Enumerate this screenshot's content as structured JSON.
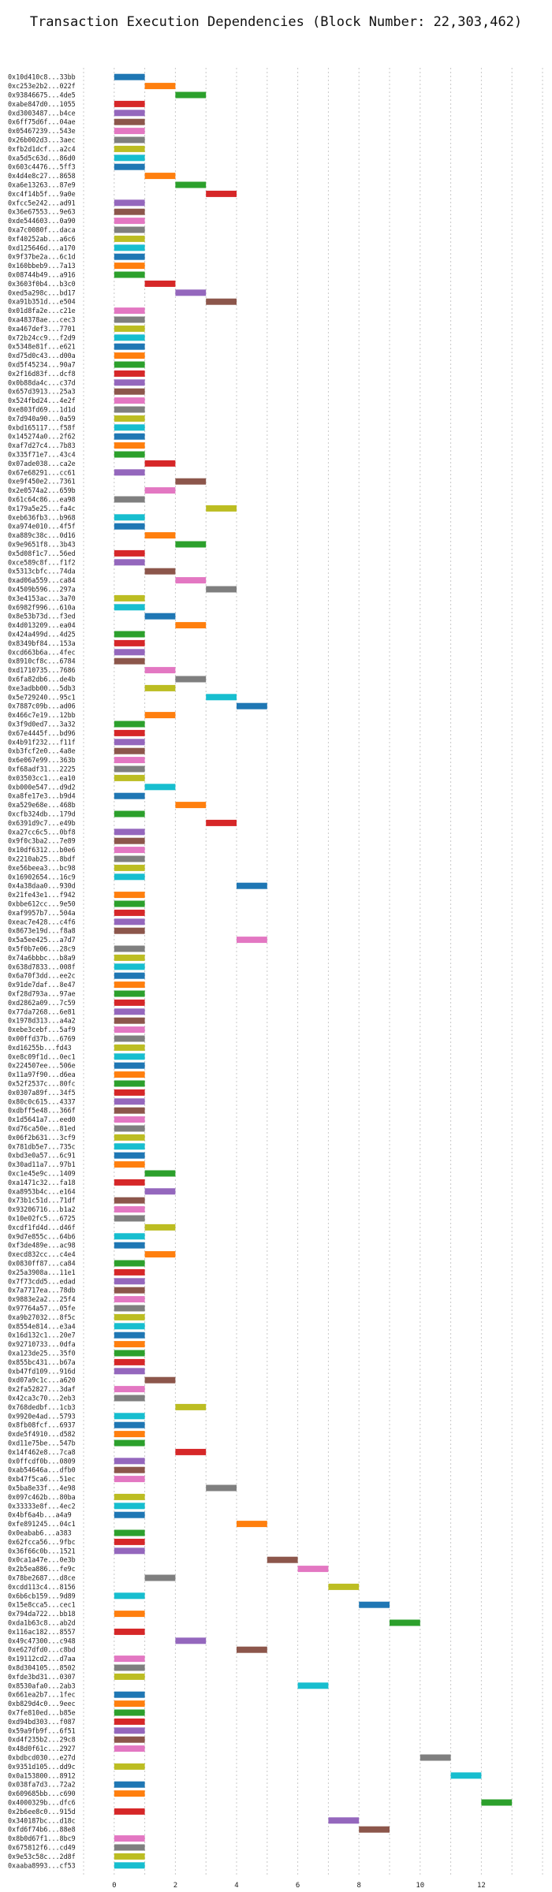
{
  "chart_data": {
    "type": "gantt",
    "title": "Transaction Execution Dependencies (Block Number: 22,303,462)",
    "xlim": [
      -1,
      14
    ],
    "x_ticks": [
      0,
      2,
      4,
      6,
      8,
      10,
      12
    ],
    "grid": true,
    "colors": [
      "#1f77b4",
      "#ff7f0e",
      "#2ca02c",
      "#d62728",
      "#9467bd",
      "#8c564b",
      "#e377c2",
      "#7f7f7f",
      "#bcbd22",
      "#17becf"
    ],
    "tasks": [
      {
        "label": "0x10d410c8...33bb",
        "start": 0,
        "duration": 1
      },
      {
        "label": "0xc253e2b2...022f",
        "start": 1,
        "duration": 1
      },
      {
        "label": "0x93846675...4de5",
        "start": 2,
        "duration": 1
      },
      {
        "label": "0xabe847d0...1055",
        "start": 0,
        "duration": 1
      },
      {
        "label": "0xd3003487...b4ce",
        "start": 0,
        "duration": 1
      },
      {
        "label": "0x6ff75d6f...04ae",
        "start": 0,
        "duration": 1
      },
      {
        "label": "0x05467239...543e",
        "start": 0,
        "duration": 1
      },
      {
        "label": "0x26b002d3...3aec",
        "start": 0,
        "duration": 1
      },
      {
        "label": "0xfb2d1dcf...a2c4",
        "start": 0,
        "duration": 1
      },
      {
        "label": "0xa5d5c63d...86d0",
        "start": 0,
        "duration": 1
      },
      {
        "label": "0x603c4476...5ff3",
        "start": 0,
        "duration": 1
      },
      {
        "label": "0x4d4e8c27...8658",
        "start": 1,
        "duration": 1
      },
      {
        "label": "0xa6e13263...87e9",
        "start": 2,
        "duration": 1
      },
      {
        "label": "0xc4f14b5f...9a0e",
        "start": 3,
        "duration": 1
      },
      {
        "label": "0xfcc5e242...ad91",
        "start": 0,
        "duration": 1
      },
      {
        "label": "0x36e67553...9e63",
        "start": 0,
        "duration": 1
      },
      {
        "label": "0xde544603...0a90",
        "start": 0,
        "duration": 1
      },
      {
        "label": "0xa7c0080f...daca",
        "start": 0,
        "duration": 1
      },
      {
        "label": "0xf40252ab...a6c6",
        "start": 0,
        "duration": 1
      },
      {
        "label": "0xd125646d...a170",
        "start": 0,
        "duration": 1
      },
      {
        "label": "0x9f37be2a...6c1d",
        "start": 0,
        "duration": 1
      },
      {
        "label": "0x160bbeb9...7a13",
        "start": 0,
        "duration": 1
      },
      {
        "label": "0x08744b49...a916",
        "start": 0,
        "duration": 1
      },
      {
        "label": "0x3603f0b4...b3c0",
        "start": 1,
        "duration": 1
      },
      {
        "label": "0xed5a298c...bd17",
        "start": 2,
        "duration": 1
      },
      {
        "label": "0xa91b351d...e504",
        "start": 3,
        "duration": 1
      },
      {
        "label": "0x01d8fa2e...c21e",
        "start": 0,
        "duration": 1
      },
      {
        "label": "0xa48378ae...cec3",
        "start": 0,
        "duration": 1
      },
      {
        "label": "0xa467def3...7701",
        "start": 0,
        "duration": 1
      },
      {
        "label": "0x72b24cc9...f2d9",
        "start": 0,
        "duration": 1
      },
      {
        "label": "0x5348e81f...e621",
        "start": 0,
        "duration": 1
      },
      {
        "label": "0xd75d0c43...d00a",
        "start": 0,
        "duration": 1
      },
      {
        "label": "0xd5f45234...90a7",
        "start": 0,
        "duration": 1
      },
      {
        "label": "0x2f16d83f...dcf8",
        "start": 0,
        "duration": 1
      },
      {
        "label": "0x0b88da4c...c37d",
        "start": 0,
        "duration": 1
      },
      {
        "label": "0x657d3913...25a3",
        "start": 0,
        "duration": 1
      },
      {
        "label": "0x524fbd24...4e2f",
        "start": 0,
        "duration": 1
      },
      {
        "label": "0xe803fd69...1d1d",
        "start": 0,
        "duration": 1
      },
      {
        "label": "0x7d940a90...0a59",
        "start": 0,
        "duration": 1
      },
      {
        "label": "0xbd165117...f58f",
        "start": 0,
        "duration": 1
      },
      {
        "label": "0x145274a0...2f62",
        "start": 0,
        "duration": 1
      },
      {
        "label": "0xaf7d27c4...7b83",
        "start": 0,
        "duration": 1
      },
      {
        "label": "0x335f71e7...43c4",
        "start": 0,
        "duration": 1
      },
      {
        "label": "0x07ade038...ca2e",
        "start": 1,
        "duration": 1
      },
      {
        "label": "0x67e68291...cc61",
        "start": 0,
        "duration": 1
      },
      {
        "label": "0xe9f450e2...7361",
        "start": 2,
        "duration": 1
      },
      {
        "label": "0x2e0574a2...659b",
        "start": 1,
        "duration": 1
      },
      {
        "label": "0x61c64c86...ea98",
        "start": 0,
        "duration": 1
      },
      {
        "label": "0x179a5e25...fa4c",
        "start": 3,
        "duration": 1
      },
      {
        "label": "0xeb636fb3...b968",
        "start": 0,
        "duration": 1
      },
      {
        "label": "0xa974e010...4f5f",
        "start": 0,
        "duration": 1
      },
      {
        "label": "0xa889c38c...0d16",
        "start": 1,
        "duration": 1
      },
      {
        "label": "0x9e9651f8...3b43",
        "start": 2,
        "duration": 1
      },
      {
        "label": "0x5d08f1c7...56ed",
        "start": 0,
        "duration": 1
      },
      {
        "label": "0xce589c8f...f1f2",
        "start": 0,
        "duration": 1
      },
      {
        "label": "0x5313cbfc...74da",
        "start": 1,
        "duration": 1
      },
      {
        "label": "0xad06a559...ca84",
        "start": 2,
        "duration": 1
      },
      {
        "label": "0x4509b596...297a",
        "start": 3,
        "duration": 1
      },
      {
        "label": "0x3e4153ac...3a70",
        "start": 0,
        "duration": 1
      },
      {
        "label": "0x6982f996...610a",
        "start": 0,
        "duration": 1
      },
      {
        "label": "0x8e53b73d...f3ed",
        "start": 1,
        "duration": 1
      },
      {
        "label": "0x4d013209...ea04",
        "start": 2,
        "duration": 1
      },
      {
        "label": "0x424a499d...4d25",
        "start": 0,
        "duration": 1
      },
      {
        "label": "0x8349bf84...153a",
        "start": 0,
        "duration": 1
      },
      {
        "label": "0xcd663b6a...4fec",
        "start": 0,
        "duration": 1
      },
      {
        "label": "0x8910cf8c...6784",
        "start": 0,
        "duration": 1
      },
      {
        "label": "0xd1710735...7686",
        "start": 1,
        "duration": 1
      },
      {
        "label": "0x6fa82db6...de4b",
        "start": 2,
        "duration": 1
      },
      {
        "label": "0xe3adbb00...5db3",
        "start": 1,
        "duration": 1
      },
      {
        "label": "0x5e729240...95c1",
        "start": 3,
        "duration": 1
      },
      {
        "label": "0x7887c09b...ad06",
        "start": 4,
        "duration": 1
      },
      {
        "label": "0x466c7e19...12bb",
        "start": 1,
        "duration": 1
      },
      {
        "label": "0x3f9d0ed7...3a32",
        "start": 0,
        "duration": 1
      },
      {
        "label": "0x67e4445f...bd96",
        "start": 0,
        "duration": 1
      },
      {
        "label": "0x4b91f232...f11f",
        "start": 0,
        "duration": 1
      },
      {
        "label": "0xb3fcf2e0...4a8e",
        "start": 0,
        "duration": 1
      },
      {
        "label": "0x6e067e99...363b",
        "start": 0,
        "duration": 1
      },
      {
        "label": "0xf68adf31...2225",
        "start": 0,
        "duration": 1
      },
      {
        "label": "0x03503cc1...ea10",
        "start": 0,
        "duration": 1
      },
      {
        "label": "0xb000e547...d9d2",
        "start": 1,
        "duration": 1
      },
      {
        "label": "0xa8fe17e3...b9d4",
        "start": 0,
        "duration": 1
      },
      {
        "label": "0xa529e68e...468b",
        "start": 2,
        "duration": 1
      },
      {
        "label": "0xcfb324db...179d",
        "start": 0,
        "duration": 1
      },
      {
        "label": "0x6391d9c7...e49b",
        "start": 3,
        "duration": 1
      },
      {
        "label": "0xa27cc6c5...0bf8",
        "start": 0,
        "duration": 1
      },
      {
        "label": "0x9f0c3ba2...7e89",
        "start": 0,
        "duration": 1
      },
      {
        "label": "0x10df6312...b0e6",
        "start": 0,
        "duration": 1
      },
      {
        "label": "0x2210ab25...8bdf",
        "start": 0,
        "duration": 1
      },
      {
        "label": "0xe56beea3...bc98",
        "start": 0,
        "duration": 1
      },
      {
        "label": "0x16902654...16c9",
        "start": 0,
        "duration": 1
      },
      {
        "label": "0x4a38daa0...930d",
        "start": 4,
        "duration": 1
      },
      {
        "label": "0x21fe43e1...f942",
        "start": 0,
        "duration": 1
      },
      {
        "label": "0xbbe612cc...9e50",
        "start": 0,
        "duration": 1
      },
      {
        "label": "0xaf9957b7...504a",
        "start": 0,
        "duration": 1
      },
      {
        "label": "0xeac7e428...c4f6",
        "start": 0,
        "duration": 1
      },
      {
        "label": "0x8673e19d...f8a8",
        "start": 0,
        "duration": 1
      },
      {
        "label": "0x5a5ee425...a7d7",
        "start": 4,
        "duration": 1
      },
      {
        "label": "0x5f0b7e06...28c9",
        "start": 0,
        "duration": 1
      },
      {
        "label": "0x74a6bbbc...b8a9",
        "start": 0,
        "duration": 1
      },
      {
        "label": "0x638d7833...008f",
        "start": 0,
        "duration": 1
      },
      {
        "label": "0x6a70f3dd...ee2c",
        "start": 0,
        "duration": 1
      },
      {
        "label": "0x91de7daf...8e47",
        "start": 0,
        "duration": 1
      },
      {
        "label": "0xf28d793a...97ae",
        "start": 0,
        "duration": 1
      },
      {
        "label": "0xd2862a09...7c59",
        "start": 0,
        "duration": 1
      },
      {
        "label": "0x77da7268...6e81",
        "start": 0,
        "duration": 1
      },
      {
        "label": "0x1978d313...a4a2",
        "start": 0,
        "duration": 1
      },
      {
        "label": "0xebe3cebf...5af9",
        "start": 0,
        "duration": 1
      },
      {
        "label": "0x00ffd37b...6769",
        "start": 0,
        "duration": 1
      },
      {
        "label": "0xd16255b...fd43",
        "start": 0,
        "duration": 1
      },
      {
        "label": "0xe8c09f1d...0ec1",
        "start": 0,
        "duration": 1
      },
      {
        "label": "0x224507ee...506e",
        "start": 0,
        "duration": 1
      },
      {
        "label": "0x11a97f90...d6ea",
        "start": 0,
        "duration": 1
      },
      {
        "label": "0x52f2537c...80fc",
        "start": 0,
        "duration": 1
      },
      {
        "label": "0x0307a89f...34f5",
        "start": 0,
        "duration": 1
      },
      {
        "label": "0x80c0c615...4337",
        "start": 0,
        "duration": 1
      },
      {
        "label": "0xdbff5e48...366f",
        "start": 0,
        "duration": 1
      },
      {
        "label": "0x1d5641a7...eed0",
        "start": 0,
        "duration": 1
      },
      {
        "label": "0xd76ca50e...81ed",
        "start": 0,
        "duration": 1
      },
      {
        "label": "0x06f2b631...3cf9",
        "start": 0,
        "duration": 1
      },
      {
        "label": "0x781db5e7...735c",
        "start": 0,
        "duration": 1
      },
      {
        "label": "0xbd3e0a57...6c91",
        "start": 0,
        "duration": 1
      },
      {
        "label": "0x30ad11a7...97b1",
        "start": 0,
        "duration": 1
      },
      {
        "label": "0xc1e45e9c...1409",
        "start": 1,
        "duration": 1
      },
      {
        "label": "0xa1471c32...fa18",
        "start": 0,
        "duration": 1
      },
      {
        "label": "0xa8953b4c...e164",
        "start": 1,
        "duration": 1
      },
      {
        "label": "0x73b1c51d...71df",
        "start": 0,
        "duration": 1
      },
      {
        "label": "0x93206716...b1a2",
        "start": 0,
        "duration": 1
      },
      {
        "label": "0x10e02fc5...6725",
        "start": 0,
        "duration": 1
      },
      {
        "label": "0xcdf1fd4d...d46f",
        "start": 1,
        "duration": 1
      },
      {
        "label": "0x9d7e855c...64b6",
        "start": 0,
        "duration": 1
      },
      {
        "label": "0xf3de489e...ac98",
        "start": 0,
        "duration": 1
      },
      {
        "label": "0xecd832cc...c4e4",
        "start": 1,
        "duration": 1
      },
      {
        "label": "0x0830ff87...ca84",
        "start": 0,
        "duration": 1
      },
      {
        "label": "0x25a3908a...11e1",
        "start": 0,
        "duration": 1
      },
      {
        "label": "0x7f73cdd5...edad",
        "start": 0,
        "duration": 1
      },
      {
        "label": "0x7a7717ea...78db",
        "start": 0,
        "duration": 1
      },
      {
        "label": "0x9883e2a2...25f4",
        "start": 0,
        "duration": 1
      },
      {
        "label": "0x97764a57...05fe",
        "start": 0,
        "duration": 1
      },
      {
        "label": "0xa9b27032...8f5c",
        "start": 0,
        "duration": 1
      },
      {
        "label": "0x8554e814...e3a4",
        "start": 0,
        "duration": 1
      },
      {
        "label": "0x16d132c1...20e7",
        "start": 0,
        "duration": 1
      },
      {
        "label": "0x92710733...0dfa",
        "start": 0,
        "duration": 1
      },
      {
        "label": "0xa123de25...35f0",
        "start": 0,
        "duration": 1
      },
      {
        "label": "0x855bc431...b67a",
        "start": 0,
        "duration": 1
      },
      {
        "label": "0xb47fd109...916d",
        "start": 0,
        "duration": 1
      },
      {
        "label": "0xd07a9c1c...a620",
        "start": 1,
        "duration": 1
      },
      {
        "label": "0x2fa52827...3daf",
        "start": 0,
        "duration": 1
      },
      {
        "label": "0x42ca3c70...2eb3",
        "start": 0,
        "duration": 1
      },
      {
        "label": "0x768dedbf...1cb3",
        "start": 2,
        "duration": 1
      },
      {
        "label": "0x9920e4ad...5793",
        "start": 0,
        "duration": 1
      },
      {
        "label": "0x8fb08fcf...6937",
        "start": 0,
        "duration": 1
      },
      {
        "label": "0xde5f4910...d582",
        "start": 0,
        "duration": 1
      },
      {
        "label": "0xd11e75be...547b",
        "start": 0,
        "duration": 1
      },
      {
        "label": "0x14f462e8...7ca8",
        "start": 2,
        "duration": 1
      },
      {
        "label": "0x0ffcdf0b...0809",
        "start": 0,
        "duration": 1
      },
      {
        "label": "0xab54646a...dfb0",
        "start": 0,
        "duration": 1
      },
      {
        "label": "0xb47f5ca6...51ec",
        "start": 0,
        "duration": 1
      },
      {
        "label": "0x5ba8e33f...4e98",
        "start": 3,
        "duration": 1
      },
      {
        "label": "0x097c462b...80ba",
        "start": 0,
        "duration": 1
      },
      {
        "label": "0x33333e8f...4ec2",
        "start": 0,
        "duration": 1
      },
      {
        "label": "0x4bf6a4b...a4a9",
        "start": 0,
        "duration": 1
      },
      {
        "label": "0xfe891245...04c1",
        "start": 4,
        "duration": 1
      },
      {
        "label": "0x0eabab6...a383",
        "start": 0,
        "duration": 1
      },
      {
        "label": "0x62fcca56...9fbc",
        "start": 0,
        "duration": 1
      },
      {
        "label": "0x36f66c0b...1521",
        "start": 0,
        "duration": 1
      },
      {
        "label": "0x0ca1a47e...0e3b",
        "start": 5,
        "duration": 1
      },
      {
        "label": "0x2b5ea886...fe9c",
        "start": 6,
        "duration": 1
      },
      {
        "label": "0x78be2687...d8ce",
        "start": 1,
        "duration": 1
      },
      {
        "label": "0xcdd113c4...8156",
        "start": 7,
        "duration": 1
      },
      {
        "label": "0x6b6cb159...9d89",
        "start": 0,
        "duration": 1
      },
      {
        "label": "0x15e8cca5...cec1",
        "start": 8,
        "duration": 1
      },
      {
        "label": "0x794da722...bb18",
        "start": 0,
        "duration": 1
      },
      {
        "label": "0xda1b63c8...ab2d",
        "start": 9,
        "duration": 1
      },
      {
        "label": "0x116ac182...8557",
        "start": 0,
        "duration": 1
      },
      {
        "label": "0x49c47300...c948",
        "start": 2,
        "duration": 1
      },
      {
        "label": "0xe627dfd0...c8bd",
        "start": 4,
        "duration": 1
      },
      {
        "label": "0x19112cd2...d7aa",
        "start": 0,
        "duration": 1
      },
      {
        "label": "0x8d304105...8502",
        "start": 0,
        "duration": 1
      },
      {
        "label": "0xfde3bd31...0307",
        "start": 0,
        "duration": 1
      },
      {
        "label": "0x8530afa0...2ab3",
        "start": 6,
        "duration": 1
      },
      {
        "label": "0x661ea2b7...1fec",
        "start": 0,
        "duration": 1
      },
      {
        "label": "0xb829d4c0...9eec",
        "start": 0,
        "duration": 1
      },
      {
        "label": "0x7fe810ed...b85e",
        "start": 0,
        "duration": 1
      },
      {
        "label": "0xd94bd303...f087",
        "start": 0,
        "duration": 1
      },
      {
        "label": "0x59a9fb9f...6f51",
        "start": 0,
        "duration": 1
      },
      {
        "label": "0xd4f235b2...29c8",
        "start": 0,
        "duration": 1
      },
      {
        "label": "0x48d0f61c...2927",
        "start": 0,
        "duration": 1
      },
      {
        "label": "0xbdbcd030...e27d",
        "start": 10,
        "duration": 1
      },
      {
        "label": "0x9351d105...dd9c",
        "start": 0,
        "duration": 1
      },
      {
        "label": "0x0a153800...8912",
        "start": 11,
        "duration": 1
      },
      {
        "label": "0x038fa7d3...72a2",
        "start": 0,
        "duration": 1
      },
      {
        "label": "0x609685bb...c690",
        "start": 0,
        "duration": 1
      },
      {
        "label": "0x4000329b...dfc6",
        "start": 12,
        "duration": 1
      },
      {
        "label": "0x2b6ee8c0...915d",
        "start": 0,
        "duration": 1
      },
      {
        "label": "0x340187bc...d18c",
        "start": 7,
        "duration": 1
      },
      {
        "label": "0xfd6f74b6...88e8",
        "start": 8,
        "duration": 1
      },
      {
        "label": "0x8b0d67f1...8bc9",
        "start": 0,
        "duration": 1
      },
      {
        "label": "0x675812f6...cd49",
        "start": 0,
        "duration": 1
      },
      {
        "label": "0x9e53c58c...2d8f",
        "start": 0,
        "duration": 1
      },
      {
        "label": "0xaaba8993...cf53",
        "start": 0,
        "duration": 1
      }
    ]
  }
}
